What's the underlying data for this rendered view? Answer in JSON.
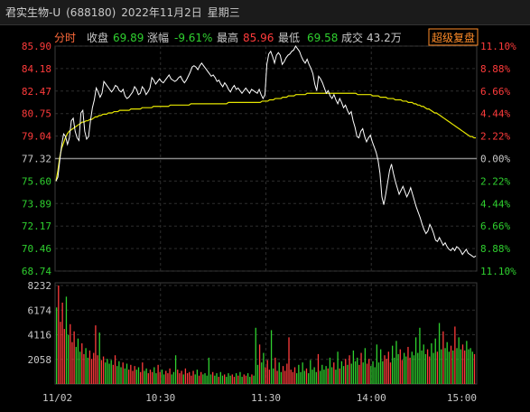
{
  "window": {
    "stock_name": "君实生物-U",
    "stock_code": "(688180)",
    "date": "2022年11月2日",
    "weekday": "星期三"
  },
  "info": {
    "mode_label": "分时",
    "close_label": "收盘",
    "close_value": "69.89",
    "change_label": "涨幅",
    "change_value": "-9.61%",
    "high_label": "最高",
    "high_value": "85.96",
    "low_label": "最低",
    "low_value": "69.58",
    "turnover_label": "成交",
    "turnover_value": "43.2万",
    "super_button": "超级复盘"
  },
  "colors": {
    "up": "#ff3b3b",
    "down": "#2fd02f",
    "price_line": "#ffffff",
    "avg_line": "#e6e600",
    "neutral": "#c8c8c8",
    "accent_orange": "#ff8c28"
  },
  "chart_data": [
    {
      "type": "line",
      "name": "price-chart",
      "prev_close": 77.32,
      "ylim": [
        68.74,
        85.9
      ],
      "yticks": [
        "85.90",
        "84.18",
        "82.47",
        "80.75",
        "79.04",
        "77.32",
        "75.60",
        "73.89",
        "72.17",
        "70.46",
        "68.74"
      ],
      "right_ticks": [
        "11.10%",
        "8.88%",
        "6.66%",
        "4.44%",
        "2.22%",
        "0.00%",
        "2.22%",
        "4.44%",
        "6.66%",
        "8.88%",
        "11.10%"
      ],
      "x_labels": [
        "11/02",
        "10:30",
        "11:30",
        "14:00",
        "15:00"
      ],
      "series": [
        {
          "role": "price",
          "values": [
            75.6,
            75.9,
            77.2,
            78.4,
            79.2,
            79.0,
            78.4,
            78.9,
            80.2,
            80.4,
            79.4,
            78.9,
            78.7,
            80.8,
            81.0,
            79.4,
            78.8,
            79.0,
            80.2,
            81.2,
            81.8,
            82.7,
            82.4,
            82.0,
            82.3,
            83.2,
            83.0,
            82.8,
            82.6,
            82.4,
            82.6,
            82.9,
            82.8,
            82.5,
            82.4,
            82.6,
            82.1,
            81.9,
            82.0,
            82.2,
            82.4,
            82.8,
            82.6,
            82.2,
            82.3,
            82.8,
            82.6,
            82.2,
            82.4,
            82.7,
            83.5,
            83.3,
            83.0,
            83.2,
            83.4,
            83.2,
            83.1,
            83.3,
            83.5,
            83.7,
            83.4,
            83.3,
            83.2,
            83.3,
            83.5,
            83.6,
            83.3,
            83.1,
            83.3,
            83.6,
            83.9,
            84.3,
            84.4,
            84.3,
            84.1,
            84.4,
            84.6,
            84.4,
            84.2,
            84.0,
            83.8,
            83.6,
            83.7,
            83.5,
            83.2,
            83.3,
            83.0,
            82.8,
            83.1,
            82.9,
            82.6,
            82.4,
            82.7,
            82.9,
            82.6,
            82.7,
            82.5,
            82.3,
            82.5,
            82.7,
            82.5,
            82.3,
            82.6,
            82.5,
            82.4,
            82.3,
            82.6,
            82.2,
            81.9,
            82.2,
            84.5,
            85.3,
            85.5,
            85.1,
            84.6,
            85.2,
            85.4,
            85.2,
            84.5,
            84.7,
            85.0,
            85.2,
            85.3,
            85.5,
            85.6,
            85.9,
            85.7,
            85.5,
            85.1,
            84.8,
            84.6,
            84.9,
            84.5,
            84.2,
            83.8,
            83.0,
            82.5,
            83.6,
            83.4,
            83.1,
            82.7,
            82.3,
            82.5,
            82.1,
            81.9,
            82.2,
            81.8,
            81.5,
            81.9,
            81.6,
            81.2,
            81.4,
            81.0,
            80.7,
            80.9,
            80.2,
            79.7,
            79.0,
            78.9,
            79.4,
            79.6,
            79.0,
            78.6,
            78.9,
            79.1,
            78.6,
            78.2,
            77.8,
            77.2,
            76.2,
            74.4,
            73.8,
            74.6,
            75.5,
            76.4,
            76.9,
            76.2,
            75.6,
            75.1,
            74.6,
            74.9,
            75.2,
            74.8,
            74.4,
            74.7,
            75.1,
            74.6,
            74.1,
            73.6,
            73.2,
            72.8,
            72.3,
            71.9,
            71.6,
            71.8,
            72.3,
            72.0,
            71.6,
            71.1,
            71.0,
            71.3,
            71.0,
            70.7,
            70.9,
            70.6,
            70.4,
            70.3,
            70.5,
            70.3,
            70.6,
            70.5,
            70.3,
            70.0,
            70.2,
            70.4,
            70.1,
            70.0,
            69.9,
            69.8,
            69.89
          ]
        },
        {
          "role": "average",
          "values": [
            75.6,
            76.4,
            77.4,
            78.1,
            78.5,
            78.9,
            79.2,
            79.4,
            79.5,
            79.6,
            79.7,
            79.8,
            79.9,
            80.0,
            80.1,
            80.1,
            80.2,
            80.2,
            80.3,
            80.3,
            80.4,
            80.5,
            80.5,
            80.6,
            80.6,
            80.7,
            80.7,
            80.7,
            80.8,
            80.8,
            80.8,
            80.9,
            80.9,
            80.9,
            81.0,
            81.0,
            81.0,
            81.0,
            81.0,
            81.0,
            81.1,
            81.1,
            81.1,
            81.1,
            81.1,
            81.1,
            81.2,
            81.2,
            81.2,
            81.2,
            81.2,
            81.2,
            81.3,
            81.3,
            81.3,
            81.3,
            81.3,
            81.3,
            81.3,
            81.3,
            81.3,
            81.4,
            81.4,
            81.4,
            81.4,
            81.4,
            81.4,
            81.4,
            81.4,
            81.4,
            81.4,
            81.4,
            81.5,
            81.5,
            81.5,
            81.5,
            81.5,
            81.5,
            81.5,
            81.5,
            81.5,
            81.5,
            81.5,
            81.5,
            81.5,
            81.5,
            81.5,
            81.5,
            81.5,
            81.5,
            81.5,
            81.5,
            81.6,
            81.6,
            81.6,
            81.6,
            81.6,
            81.6,
            81.6,
            81.6,
            81.6,
            81.6,
            81.6,
            81.6,
            81.6,
            81.6,
            81.6,
            81.6,
            81.6,
            81.6,
            81.7,
            81.7,
            81.7,
            81.7,
            81.8,
            81.8,
            81.8,
            81.9,
            81.9,
            81.9,
            81.9,
            82.0,
            82.0,
            82.0,
            82.1,
            82.1,
            82.1,
            82.1,
            82.2,
            82.2,
            82.2,
            82.2,
            82.2,
            82.2,
            82.3,
            82.3,
            82.3,
            82.3,
            82.3,
            82.3,
            82.3,
            82.3,
            82.3,
            82.3,
            82.3,
            82.3,
            82.3,
            82.3,
            82.3,
            82.3,
            82.3,
            82.3,
            82.3,
            82.3,
            82.3,
            82.3,
            82.3,
            82.3,
            82.3,
            82.3,
            82.3,
            82.2,
            82.2,
            82.2,
            82.2,
            82.2,
            82.2,
            82.2,
            82.2,
            82.1,
            82.1,
            82.1,
            82.1,
            82.0,
            82.0,
            82.0,
            82.0,
            81.9,
            81.9,
            81.9,
            81.9,
            81.8,
            81.8,
            81.8,
            81.8,
            81.7,
            81.7,
            81.7,
            81.6,
            81.6,
            81.6,
            81.5,
            81.5,
            81.4,
            81.4,
            81.3,
            81.3,
            81.2,
            81.1,
            81.1,
            81.0,
            80.9,
            80.8,
            80.8,
            80.7,
            80.6,
            80.5,
            80.4,
            80.3,
            80.2,
            80.1,
            80.0,
            79.9,
            79.8,
            79.7,
            79.6,
            79.5,
            79.4,
            79.3,
            79.2,
            79.1,
            79.0,
            79.0,
            78.9,
            78.9
          ]
        }
      ]
    },
    {
      "type": "bar",
      "name": "volume-chart",
      "ylim": [
        0,
        8232
      ],
      "yticks": [
        "8232",
        "6174",
        "4116",
        "2058"
      ],
      "values": [
        6400,
        8232,
        5200,
        6800,
        4600,
        7300,
        4100,
        5000,
        3500,
        4400,
        3100,
        3800,
        2700,
        3400,
        2500,
        3000,
        2200,
        2800,
        2100,
        2600,
        4900,
        2400,
        4300,
        2000,
        2300,
        1800,
        2100,
        1700,
        2000,
        1600,
        2400,
        1500,
        1900,
        1400,
        1800,
        1300,
        1700,
        1200,
        1600,
        1100,
        1500,
        1200,
        1400,
        1000,
        1800,
        1100,
        1300,
        900,
        1200,
        1000,
        1400,
        900,
        1600,
        1000,
        1200,
        800,
        1100,
        900,
        1300,
        800,
        1000,
        2400,
        1200,
        900,
        1100,
        800,
        1300,
        900,
        1000,
        700,
        1100,
        800,
        1200,
        700,
        1000,
        800,
        900,
        700,
        2200,
        800,
        1000,
        700,
        900,
        600,
        1000,
        700,
        800,
        600,
        900,
        700,
        800,
        600,
        900,
        700,
        1000,
        600,
        800,
        700,
        900,
        600,
        800,
        700,
        4700,
        1600,
        3300,
        1800,
        2600,
        1400,
        2000,
        1200,
        4500,
        1300,
        2200,
        1100,
        1800,
        1000,
        1500,
        1100,
        1700,
        3900,
        1200,
        1000,
        1400,
        900,
        1600,
        1000,
        1800,
        1100,
        1300,
        900,
        2000,
        1200,
        1400,
        1000,
        2500,
        1100,
        1600,
        1200,
        1500,
        1300,
        2200,
        1400,
        1800,
        1200,
        2700,
        1300,
        1900,
        1500,
        2100,
        1600,
        2400,
        1700,
        2800,
        1900,
        2200,
        1600,
        2600,
        1800,
        3000,
        1700,
        2100,
        1500,
        1900,
        1400,
        3300,
        1800,
        2900,
        1900,
        2400,
        2100,
        2700,
        1800,
        3200,
        2200,
        3600,
        2500,
        2900,
        2000,
        2600,
        2300,
        3100,
        2200,
        2700,
        2400,
        3900,
        2600,
        4700,
        2800,
        3300,
        2500,
        2900,
        2300,
        3400,
        2600,
        3800,
        2700,
        5100,
        2900,
        4400,
        3000,
        3500,
        2700,
        3200,
        2800,
        4800,
        3000,
        3900,
        2900,
        3300,
        2800,
        3600,
        2900,
        3000,
        2700,
        2500
      ]
    }
  ]
}
